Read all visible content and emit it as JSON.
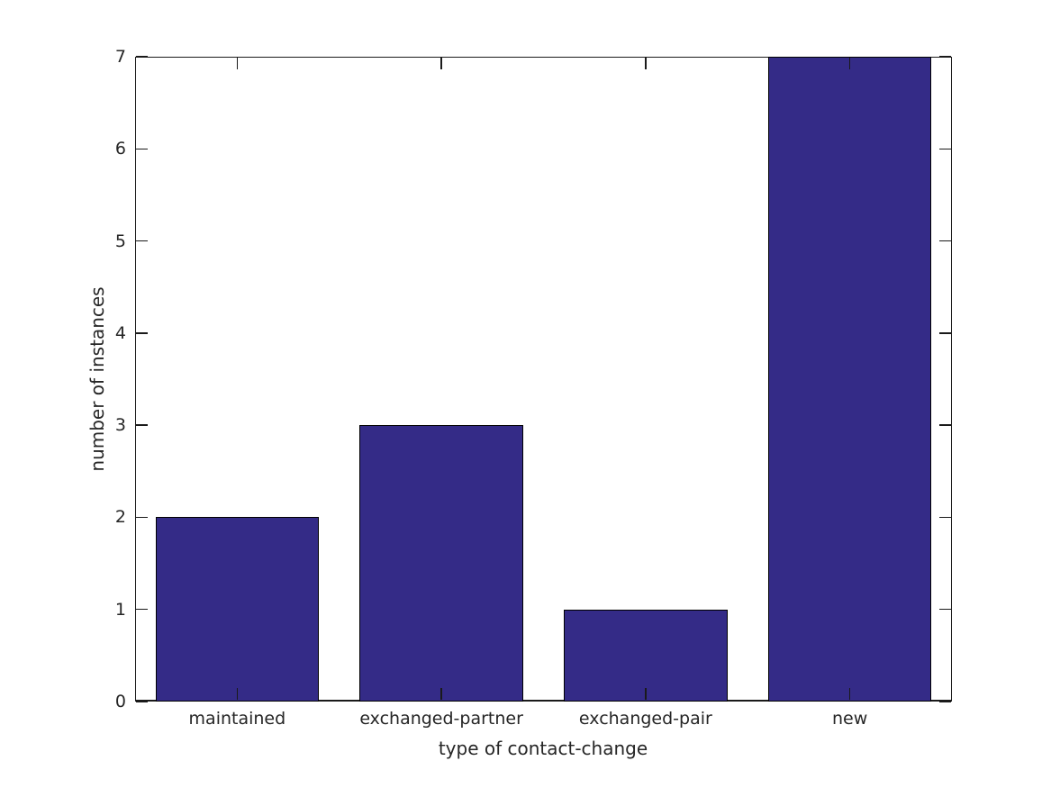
{
  "figure": {
    "background": "#ffffff"
  },
  "chart_data": {
    "type": "bar",
    "title": "",
    "categories": [
      "maintained",
      "exchanged-partner",
      "exchanged-pair",
      "new"
    ],
    "values": [
      2,
      3,
      1,
      7
    ],
    "xlabel": "type of contact-change",
    "ylabel": "number of instances",
    "ylim": [
      0,
      7
    ],
    "yticks": [
      0,
      1,
      2,
      3,
      4,
      5,
      6,
      7
    ],
    "grid": false,
    "legend": false,
    "tick_direction": "in",
    "bar_width_fraction": 0.8,
    "bar_color": "#342b87",
    "bar_edge_color": "#000000",
    "axis_line_color": "#1a1a1a",
    "axis_text_color": "#262626"
  }
}
